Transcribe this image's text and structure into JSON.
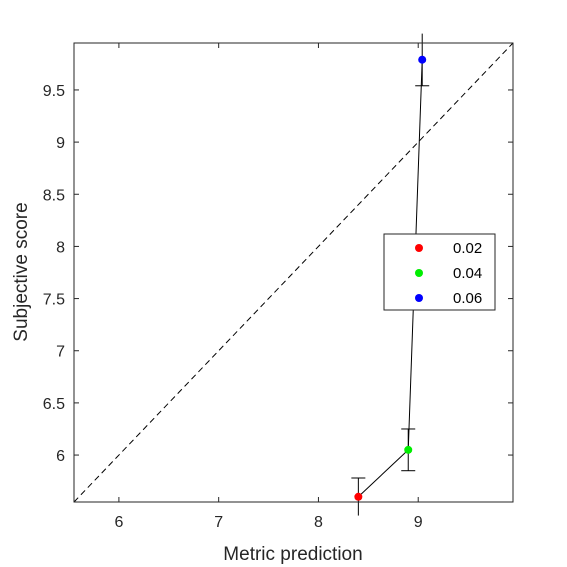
{
  "chart_data": {
    "type": "scatter",
    "title": "",
    "xlabel": "Metric prediction",
    "ylabel": "Subjective score",
    "xlim": [
      5.55,
      9.95
    ],
    "ylim": [
      5.55,
      9.95
    ],
    "xticks": [
      6,
      7,
      8,
      9
    ],
    "yticks": [
      6,
      6.5,
      7,
      7.5,
      8,
      8.5,
      9,
      9.5
    ],
    "xtick_labels": [
      "6",
      "7",
      "8",
      "9"
    ],
    "ytick_labels": [
      "6",
      "6.5",
      "7",
      "7.5",
      "8",
      "8.5",
      "9",
      "9.5"
    ],
    "grid": false,
    "legend_position": "right",
    "diagonal_reference": true,
    "series": [
      {
        "name": "0.02",
        "x": 8.4,
        "y": 5.6,
        "err_low": 0.18,
        "err_high": 0.18,
        "color": "#ff0000"
      },
      {
        "name": "0.04",
        "x": 8.9,
        "y": 6.05,
        "err_low": 0.2,
        "err_high": 0.2,
        "color": "#00ee00"
      },
      {
        "name": "0.06",
        "x": 9.04,
        "y": 9.79,
        "err_low": 0.25,
        "err_high": 0.25,
        "color": "#0000ff"
      }
    ]
  }
}
